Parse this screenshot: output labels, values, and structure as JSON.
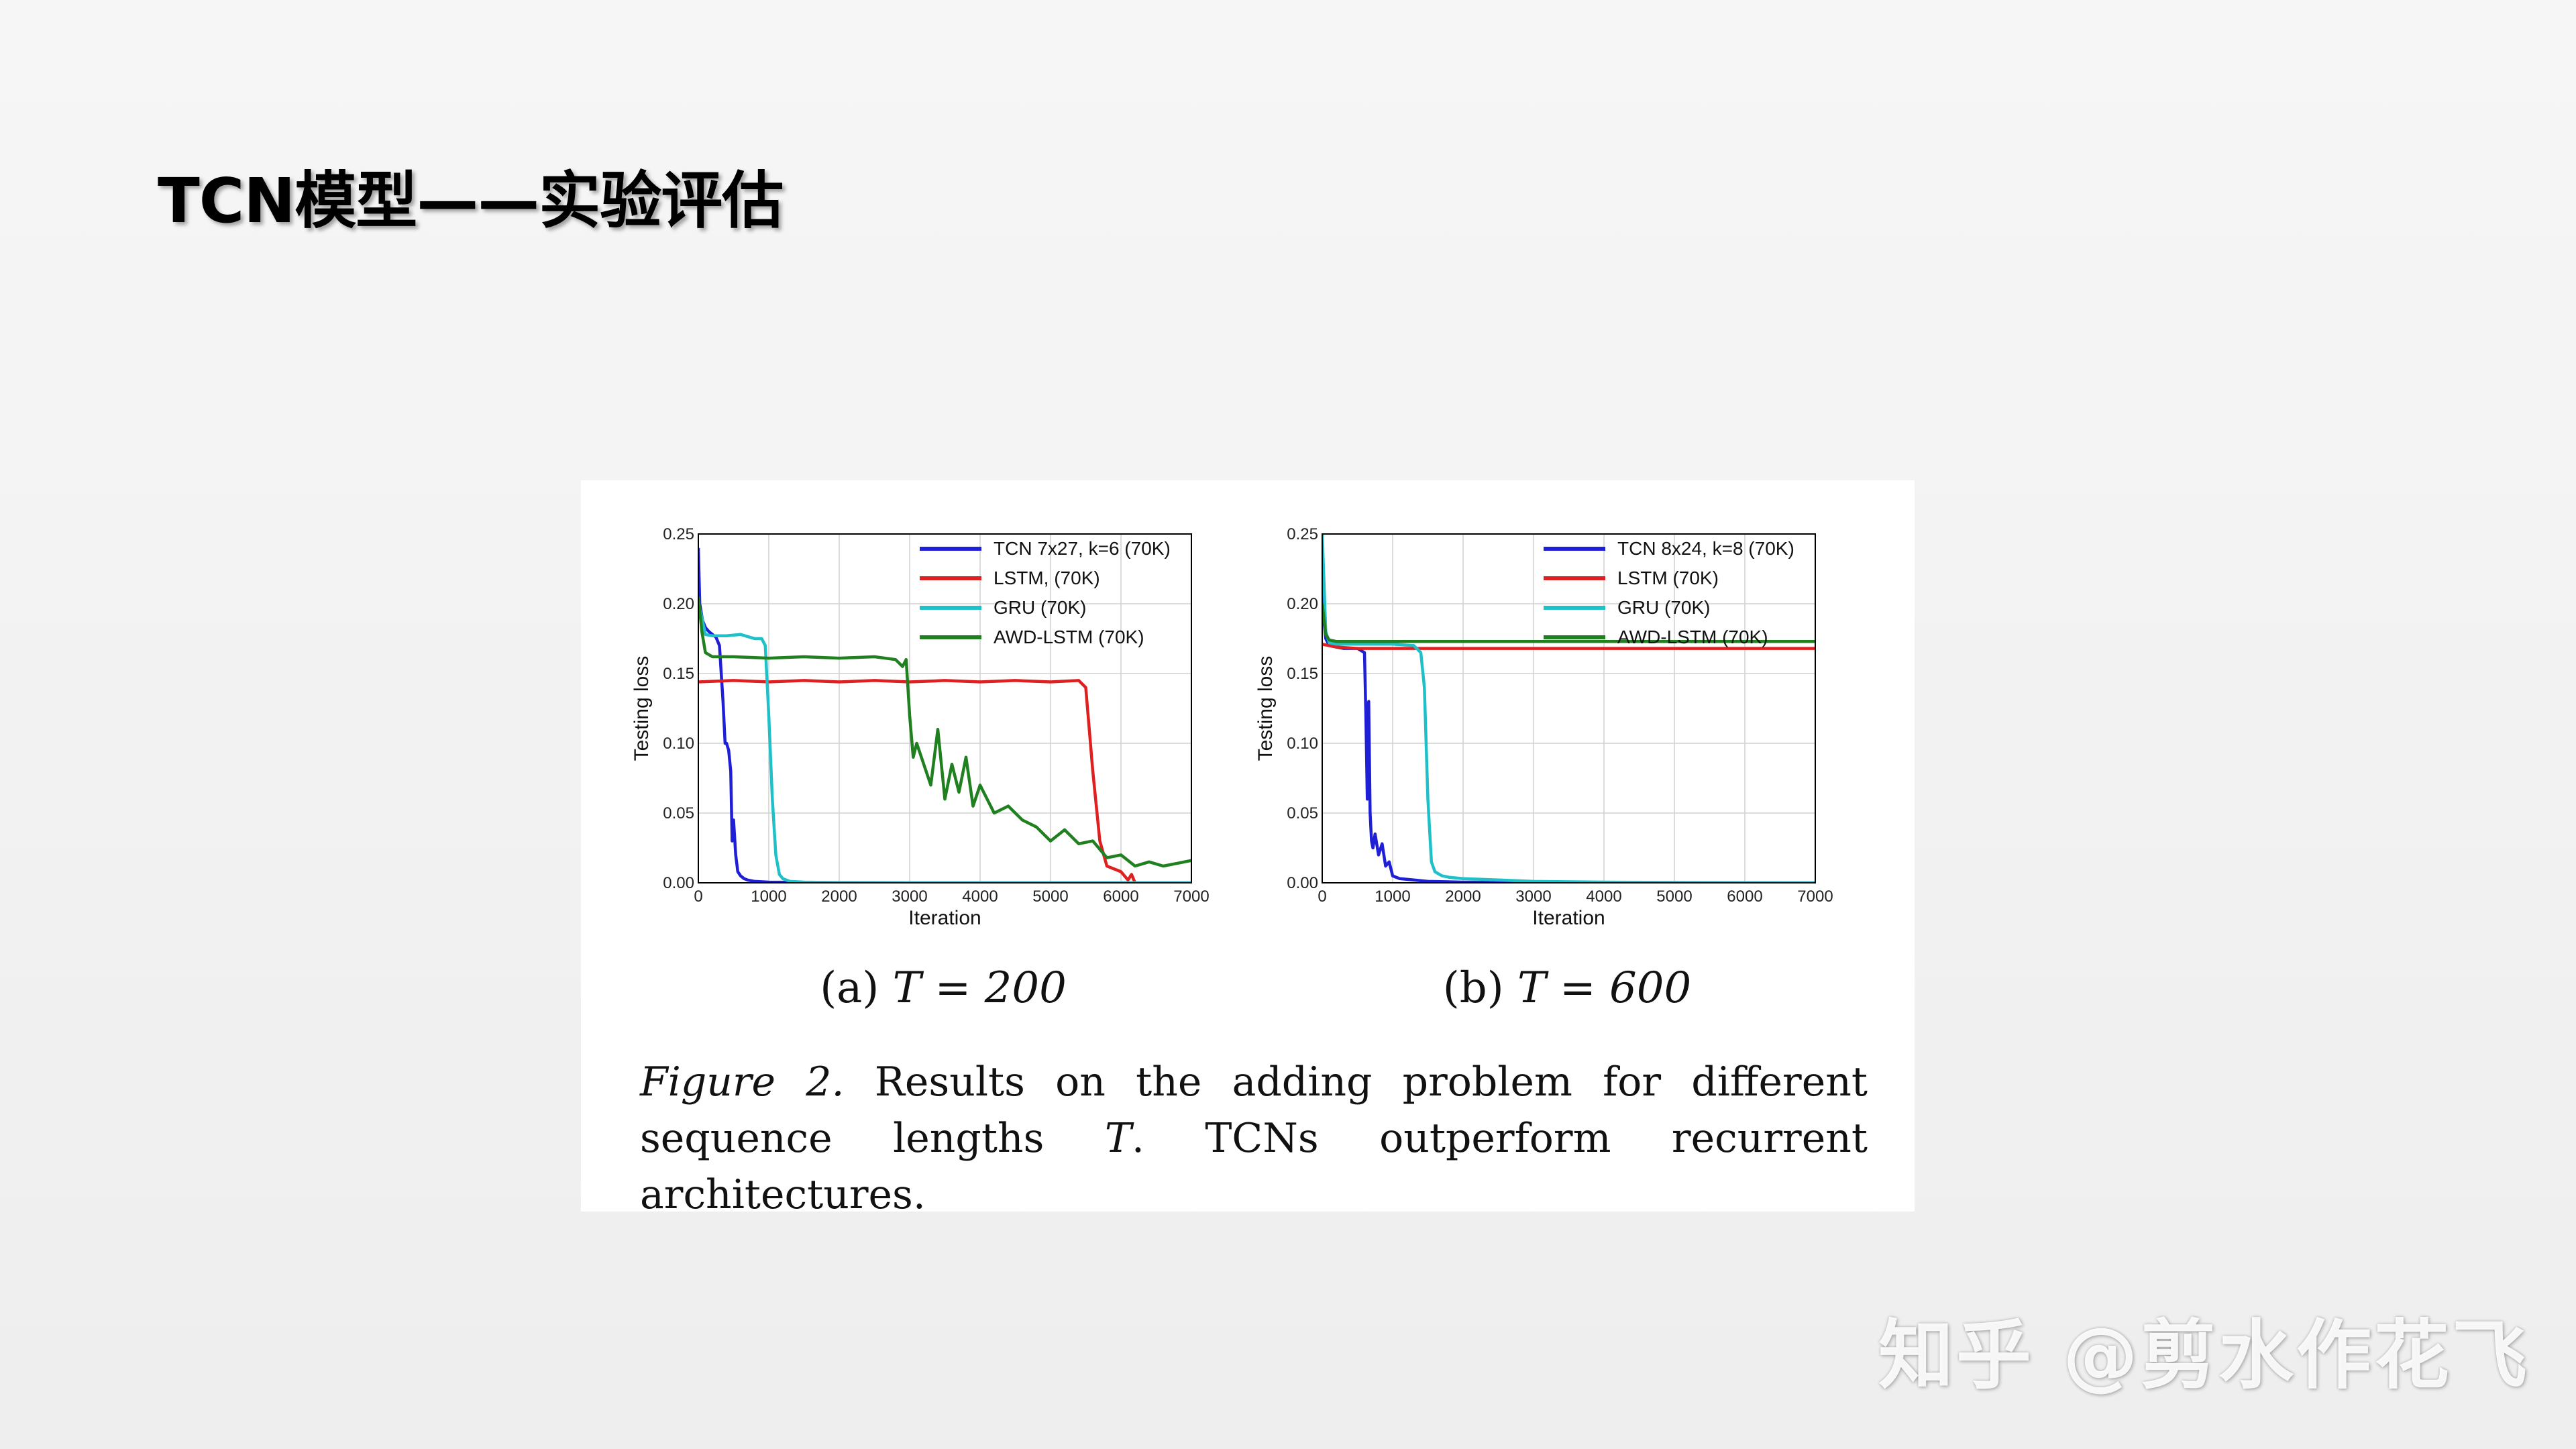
{
  "slide": {
    "title": "TCN模型——实验评估",
    "watermark": "知乎 @剪水作花飞"
  },
  "figure": {
    "subcaption_a_prefix": "(a) ",
    "subcaption_a_math": "T = 200",
    "subcaption_b_prefix": "(b) ",
    "subcaption_b_math": "T = 600",
    "caption_label": "Figure 2.",
    "caption_text_1": " Results on the adding problem for different sequence lengths ",
    "caption_math": "T",
    "caption_text_2": ". TCNs outperform recurrent architectures."
  },
  "chart_data": [
    {
      "type": "line",
      "xlabel": "Iteration",
      "ylabel": "Testing loss",
      "xlim": [
        0,
        7000
      ],
      "ylim": [
        0,
        0.25
      ],
      "xticks": [
        0,
        1000,
        2000,
        3000,
        4000,
        5000,
        6000,
        7000
      ],
      "xtick_labels": [
        "0",
        "1000",
        "2000",
        "3000",
        "4000",
        "5000",
        "6000",
        "7000"
      ],
      "yticks": [
        0.0,
        0.05,
        0.1,
        0.15,
        0.2,
        0.25
      ],
      "ytick_labels": [
        "0.00",
        "0.05",
        "0.10",
        "0.15",
        "0.20",
        "0.25"
      ],
      "grid": true,
      "legend_position": "top-right",
      "series": [
        {
          "name": "TCN 7x27, k=6 (70K)",
          "color": "#1f1fd6",
          "x": [
            0,
            20,
            60,
            100,
            150,
            200,
            250,
            300,
            350,
            380,
            400,
            430,
            460,
            480,
            500,
            530,
            560,
            600,
            650,
            700,
            800,
            1000,
            1500,
            2000,
            3000,
            4000,
            5000,
            6000,
            7000
          ],
          "y": [
            0.24,
            0.2,
            0.188,
            0.183,
            0.18,
            0.178,
            0.176,
            0.17,
            0.13,
            0.1,
            0.1,
            0.095,
            0.08,
            0.03,
            0.045,
            0.02,
            0.008,
            0.005,
            0.003,
            0.002,
            0.001,
            0.0005,
            0.0003,
            0.0002,
            0.0001,
            0.0001,
            0.0001,
            0.0001,
            0.0001
          ]
        },
        {
          "name": "LSTM, (70K)",
          "color": "#e02020",
          "x": [
            0,
            500,
            1000,
            1500,
            2000,
            2500,
            3000,
            3500,
            4000,
            4500,
            5000,
            5400,
            5500,
            5600,
            5700,
            5800,
            6000,
            6100,
            6150,
            6200,
            6300,
            7000
          ],
          "y": [
            0.144,
            0.145,
            0.144,
            0.145,
            0.144,
            0.145,
            0.144,
            0.145,
            0.144,
            0.145,
            0.144,
            0.145,
            0.14,
            0.08,
            0.03,
            0.012,
            0.008,
            0.002,
            0.006,
            0.0,
            0.0,
            0.0
          ]
        },
        {
          "name": "GRU (70K)",
          "color": "#20c0c8",
          "x": [
            0,
            50,
            100,
            200,
            400,
            600,
            800,
            900,
            950,
            1000,
            1050,
            1100,
            1150,
            1200,
            1300,
            1500,
            2000,
            3000,
            4000,
            5000,
            6000,
            7000
          ],
          "y": [
            0.2,
            0.19,
            0.178,
            0.177,
            0.177,
            0.178,
            0.175,
            0.175,
            0.17,
            0.12,
            0.06,
            0.02,
            0.006,
            0.003,
            0.001,
            0.0005,
            0.0002,
            0.0001,
            0.0001,
            0.0001,
            0.0001,
            0.0001
          ]
        },
        {
          "name": "AWD-LSTM (70K)",
          "color": "#208020",
          "x": [
            0,
            50,
            100,
            200,
            500,
            1000,
            1500,
            2000,
            2500,
            2800,
            2900,
            2950,
            3000,
            3050,
            3100,
            3200,
            3300,
            3400,
            3500,
            3600,
            3700,
            3800,
            3900,
            4000,
            4200,
            4400,
            4600,
            4800,
            5000,
            5200,
            5400,
            5600,
            5800,
            6000,
            6200,
            6400,
            6600,
            6800,
            7000
          ],
          "y": [
            0.205,
            0.18,
            0.165,
            0.162,
            0.162,
            0.161,
            0.162,
            0.161,
            0.162,
            0.16,
            0.155,
            0.16,
            0.12,
            0.09,
            0.1,
            0.085,
            0.07,
            0.11,
            0.06,
            0.085,
            0.065,
            0.09,
            0.055,
            0.07,
            0.05,
            0.055,
            0.045,
            0.04,
            0.03,
            0.038,
            0.028,
            0.03,
            0.018,
            0.02,
            0.012,
            0.015,
            0.012,
            0.014,
            0.016
          ]
        }
      ]
    },
    {
      "type": "line",
      "xlabel": "Iteration",
      "ylabel": "Testing loss",
      "xlim": [
        0,
        7000
      ],
      "ylim": [
        0,
        0.25
      ],
      "xticks": [
        0,
        1000,
        2000,
        3000,
        4000,
        5000,
        6000,
        7000
      ],
      "xtick_labels": [
        "0",
        "1000",
        "2000",
        "3000",
        "4000",
        "5000",
        "6000",
        "7000"
      ],
      "yticks": [
        0.0,
        0.05,
        0.1,
        0.15,
        0.2,
        0.25
      ],
      "ytick_labels": [
        "0.00",
        "0.05",
        "0.10",
        "0.15",
        "0.20",
        "0.25"
      ],
      "grid": true,
      "legend_position": "top-right",
      "series": [
        {
          "name": "TCN 8x24, k=8 (70K)",
          "color": "#1f1fd6",
          "x": [
            0,
            20,
            50,
            100,
            200,
            300,
            400,
            500,
            600,
            620,
            640,
            660,
            680,
            700,
            720,
            750,
            800,
            850,
            900,
            950,
            1000,
            1100,
            1300,
            1500,
            2000,
            3000,
            4000,
            5000,
            6000,
            7000
          ],
          "y": [
            0.25,
            0.19,
            0.175,
            0.17,
            0.169,
            0.168,
            0.168,
            0.168,
            0.165,
            0.12,
            0.06,
            0.13,
            0.05,
            0.03,
            0.025,
            0.035,
            0.02,
            0.028,
            0.012,
            0.015,
            0.005,
            0.003,
            0.002,
            0.001,
            0.0005,
            0.0002,
            0.0001,
            0.0001,
            0.0001,
            0.0001
          ]
        },
        {
          "name": "LSTM (70K)",
          "color": "#e02020",
          "x": [
            0,
            200,
            500,
            1000,
            2000,
            3000,
            4000,
            5000,
            6000,
            7000
          ],
          "y": [
            0.171,
            0.169,
            0.168,
            0.168,
            0.168,
            0.168,
            0.168,
            0.168,
            0.168,
            0.168
          ]
        },
        {
          "name": "GRU (70K)",
          "color": "#20c0c8",
          "x": [
            0,
            50,
            100,
            200,
            500,
            1000,
            1300,
            1400,
            1450,
            1500,
            1550,
            1600,
            1700,
            1800,
            2000,
            2500,
            3000,
            4000,
            5000,
            6000,
            7000
          ],
          "y": [
            0.25,
            0.18,
            0.172,
            0.171,
            0.171,
            0.171,
            0.17,
            0.165,
            0.14,
            0.06,
            0.015,
            0.008,
            0.005,
            0.004,
            0.003,
            0.002,
            0.001,
            0.0005,
            0.0003,
            0.0002,
            0.0001
          ]
        },
        {
          "name": "AWD-LSTM (70K)",
          "color": "#208020",
          "x": [
            0,
            50,
            100,
            200,
            500,
            1000,
            2000,
            3000,
            4000,
            5000,
            6000,
            7000
          ],
          "y": [
            0.2,
            0.178,
            0.174,
            0.173,
            0.173,
            0.173,
            0.173,
            0.173,
            0.173,
            0.173,
            0.173,
            0.173
          ]
        }
      ]
    }
  ]
}
